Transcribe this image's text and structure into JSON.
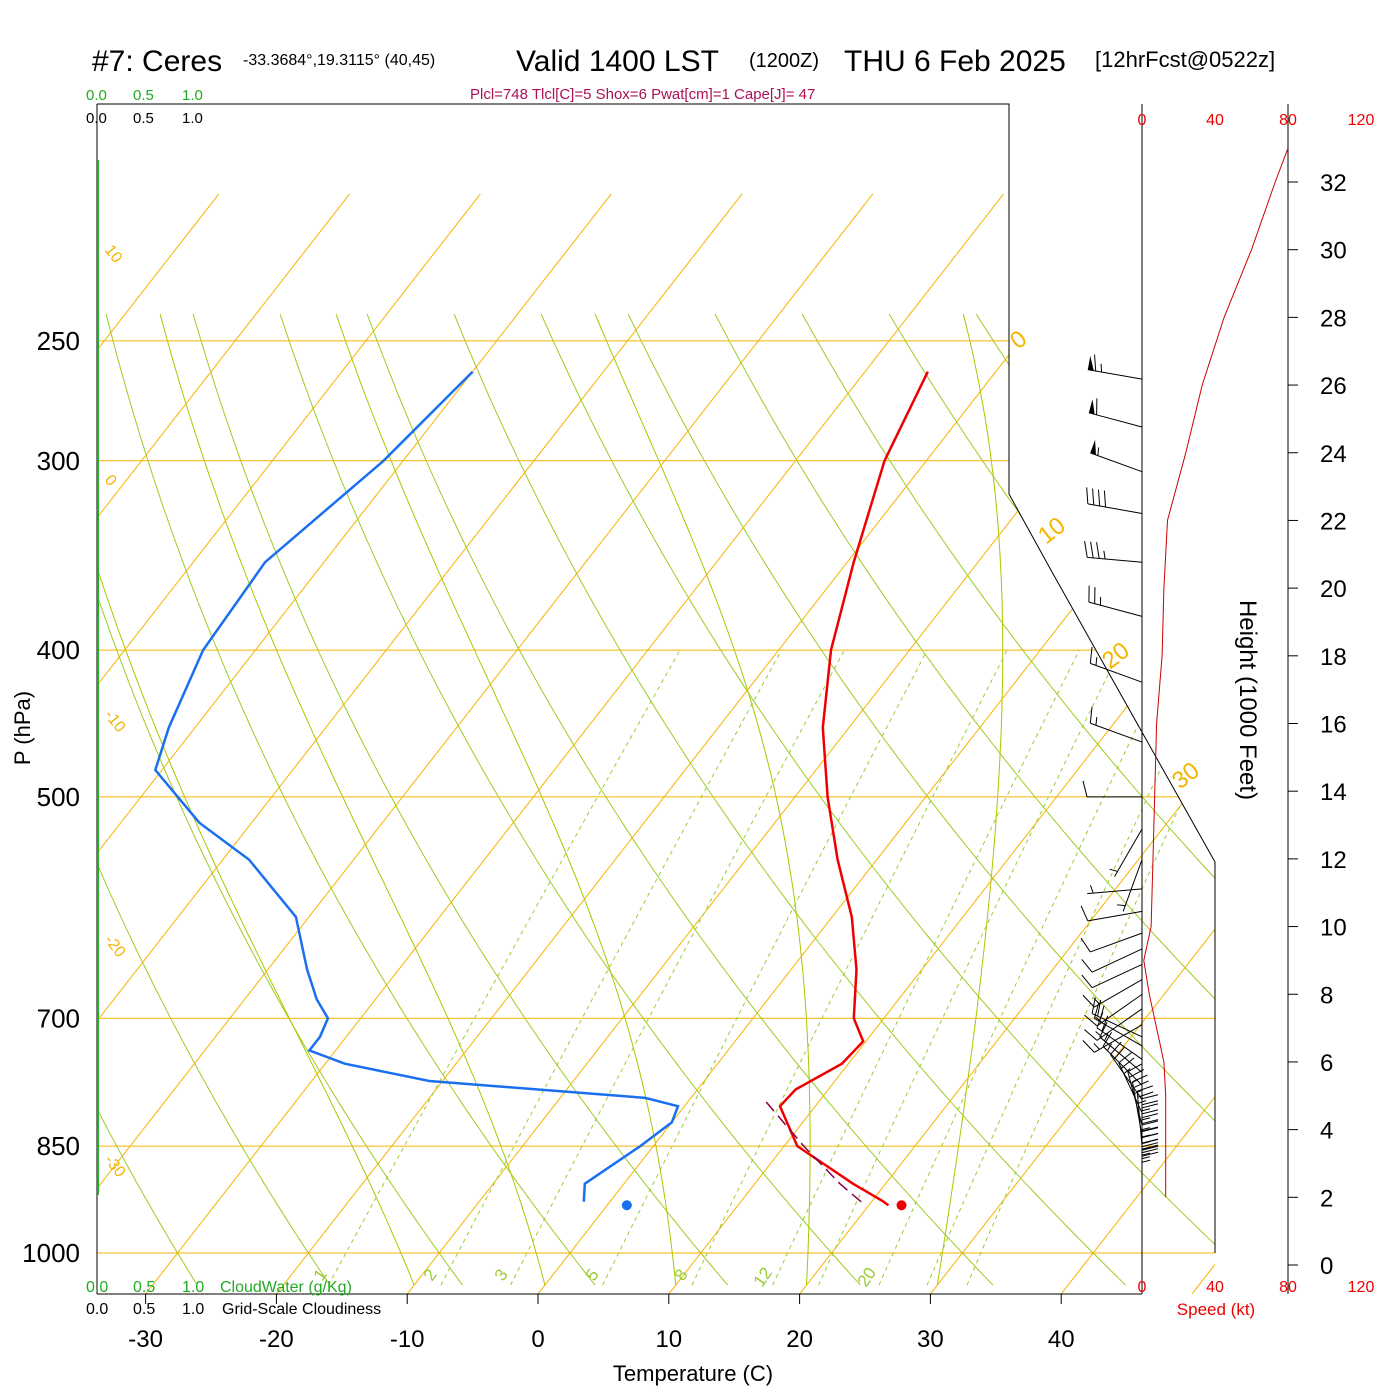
{
  "header": {
    "station": "#7: Ceres",
    "coords": "-33.3684°,19.3115° (40,45)",
    "valid": "Valid 1400 LST",
    "zulu": "(1200Z)",
    "date": "THU 6 Feb 2025",
    "forecast": "[12hrFcst@0522z]",
    "indices": "Plcl=748 Tlcl[C]=5 Shox=6 Pwat[cm]=1 Cape[J]= 47"
  },
  "scales": {
    "cloudwater_ticks": [
      "0.0",
      "0.5",
      "1.0"
    ],
    "cloudiness_ticks": [
      "0.0",
      "0.5",
      "1.0"
    ],
    "cloudwater_label": "CloudWater (g/Kg)",
    "cloudiness_label": "Grid-Scale Cloudiness",
    "speed_ticks": [
      "0",
      "40",
      "80",
      "120"
    ],
    "speed_label": "Speed (kt)"
  },
  "chart_data": {
    "type": "skew-t",
    "xlabel": "Temperature (C)",
    "ylabel": "P (hPa)",
    "y2label": "Height (1000 Feet)",
    "x_ticks": [
      -30,
      -20,
      -10,
      0,
      10,
      20,
      30,
      40
    ],
    "p_ticks": [
      250,
      300,
      400,
      500,
      700,
      850,
      1000
    ],
    "height_ticks": [
      0,
      2,
      4,
      6,
      8,
      10,
      12,
      14,
      16,
      18,
      20,
      22,
      24,
      26,
      28,
      30,
      32
    ],
    "isotherm_labels": [
      "10",
      "0",
      "-10",
      "-20",
      "-30",
      "0",
      "10",
      "20",
      "30"
    ],
    "mixing_ratio_labels": [
      "1",
      "2",
      "3",
      "5",
      "8",
      "12",
      "20"
    ],
    "temperature_profile": [
      {
        "p": 262,
        "t": -25.2
      },
      {
        "p": 300,
        "t": -23.2
      },
      {
        "p": 350,
        "t": -19.5
      },
      {
        "p": 400,
        "t": -16.0
      },
      {
        "p": 450,
        "t": -12.0
      },
      {
        "p": 500,
        "t": -7.5
      },
      {
        "p": 550,
        "t": -3.0
      },
      {
        "p": 600,
        "t": 1.5
      },
      {
        "p": 650,
        "t": 5.0
      },
      {
        "p": 700,
        "t": 7.7
      },
      {
        "p": 725,
        "t": 9.8
      },
      {
        "p": 750,
        "t": 9.5
      },
      {
        "p": 780,
        "t": 7.5
      },
      {
        "p": 800,
        "t": 7.3
      },
      {
        "p": 850,
        "t": 11.0
      },
      {
        "p": 900,
        "t": 17.5
      },
      {
        "p": 924,
        "t": 20.8
      },
      {
        "p": 930,
        "t": 21.5
      }
    ],
    "dewpoint_profile": [
      {
        "p": 262,
        "t": -60.0
      },
      {
        "p": 300,
        "t": -61.5
      },
      {
        "p": 350,
        "t": -64.5
      },
      {
        "p": 400,
        "t": -64.0
      },
      {
        "p": 450,
        "t": -62.0
      },
      {
        "p": 480,
        "t": -60.5
      },
      {
        "p": 520,
        "t": -54.0
      },
      {
        "p": 550,
        "t": -48.0
      },
      {
        "p": 600,
        "t": -41.0
      },
      {
        "p": 650,
        "t": -37.0
      },
      {
        "p": 680,
        "t": -34.5
      },
      {
        "p": 700,
        "t": -32.5
      },
      {
        "p": 720,
        "t": -32.0
      },
      {
        "p": 735,
        "t": -32.0
      },
      {
        "p": 750,
        "t": -28.5
      },
      {
        "p": 770,
        "t": -21.0
      },
      {
        "p": 790,
        "t": -3.5
      },
      {
        "p": 800,
        "t": -0.5
      },
      {
        "p": 820,
        "t": 0.0
      },
      {
        "p": 850,
        "t": -1.0
      },
      {
        "p": 900,
        "t": -3.0
      },
      {
        "p": 925,
        "t": -2.0
      }
    ],
    "parcel_path": [
      {
        "p": 795,
        "t": 6.0
      },
      {
        "p": 850,
        "t": 11.5
      },
      {
        "p": 900,
        "t": 16.5
      },
      {
        "p": 927,
        "t": 19.4
      }
    ],
    "surface_temperature": 22.5,
    "surface_dewpoint": 1.5,
    "surface_pressure": 930,
    "wind_speed_profile": [
      {
        "h": 2.0,
        "s": 13
      },
      {
        "h": 3.0,
        "s": 13
      },
      {
        "h": 4.0,
        "s": 13
      },
      {
        "h": 5.0,
        "s": 13
      },
      {
        "h": 6.0,
        "s": 12
      },
      {
        "h": 7.0,
        "s": 8
      },
      {
        "h": 8.0,
        "s": 4
      },
      {
        "h": 9.0,
        "s": 1
      },
      {
        "h": 10.0,
        "s": 5
      },
      {
        "h": 12.0,
        "s": 6
      },
      {
        "h": 14.0,
        "s": 7
      },
      {
        "h": 16.0,
        "s": 8
      },
      {
        "h": 18.0,
        "s": 11
      },
      {
        "h": 20.0,
        "s": 12
      },
      {
        "h": 22.0,
        "s": 14
      },
      {
        "h": 24.0,
        "s": 24
      },
      {
        "h": 26.0,
        "s": 33
      },
      {
        "h": 28.0,
        "s": 45
      },
      {
        "h": 30.0,
        "s": 60
      },
      {
        "h": 32.0,
        "s": 73
      },
      {
        "h": 33.0,
        "s": 80
      }
    ],
    "wind_barbs": [
      {
        "p": 930,
        "dir": 0,
        "spd": 25
      },
      {
        "p": 925,
        "dir": 0,
        "spd": 25
      },
      {
        "p": 920,
        "dir": 0,
        "spd": 25
      },
      {
        "p": 912,
        "dir": 0,
        "spd": 25
      },
      {
        "p": 904,
        "dir": 0,
        "spd": 25
      },
      {
        "p": 895,
        "dir": 0,
        "spd": 25
      },
      {
        "p": 885,
        "dir": 0,
        "spd": 25
      },
      {
        "p": 872,
        "dir": 0,
        "spd": 25
      },
      {
        "p": 860,
        "dir": 0,
        "spd": 25
      },
      {
        "p": 850,
        "dir": 355,
        "spd": 25
      },
      {
        "p": 837,
        "dir": 350,
        "spd": 25
      },
      {
        "p": 823,
        "dir": 345,
        "spd": 25
      },
      {
        "p": 808,
        "dir": 335,
        "spd": 25
      },
      {
        "p": 792,
        "dir": 325,
        "spd": 20
      },
      {
        "p": 775,
        "dir": 315,
        "spd": 15
      },
      {
        "p": 760,
        "dir": 310,
        "spd": 15
      },
      {
        "p": 745,
        "dir": 305,
        "spd": 20
      },
      {
        "p": 730,
        "dir": 300,
        "spd": 20
      },
      {
        "p": 720,
        "dir": 295,
        "spd": 20
      },
      {
        "p": 707,
        "dir": 240,
        "spd": 15
      },
      {
        "p": 690,
        "dir": 235,
        "spd": 15
      },
      {
        "p": 675,
        "dir": 235,
        "spd": 15
      },
      {
        "p": 660,
        "dir": 240,
        "spd": 15
      },
      {
        "p": 645,
        "dir": 245,
        "spd": 10
      },
      {
        "p": 630,
        "dir": 245,
        "spd": 10
      },
      {
        "p": 615,
        "dir": 250,
        "spd": 10
      },
      {
        "p": 595,
        "dir": 260,
        "spd": 10
      },
      {
        "p": 575,
        "dir": 265,
        "spd": 5
      },
      {
        "p": 550,
        "dir": 200,
        "spd": 5
      },
      {
        "p": 525,
        "dir": 210,
        "spd": 5
      },
      {
        "p": 500,
        "dir": 270,
        "spd": 10
      },
      {
        "p": 460,
        "dir": 290,
        "spd": 15
      },
      {
        "p": 420,
        "dir": 290,
        "spd": 15
      },
      {
        "p": 380,
        "dir": 285,
        "spd": 25
      },
      {
        "p": 350,
        "dir": 275,
        "spd": 35
      },
      {
        "p": 325,
        "dir": 280,
        "spd": 40
      },
      {
        "p": 305,
        "dir": 290,
        "spd": 55
      },
      {
        "p": 285,
        "dir": 285,
        "spd": 60
      },
      {
        "p": 265,
        "dir": 280,
        "spd": 65
      }
    ]
  }
}
